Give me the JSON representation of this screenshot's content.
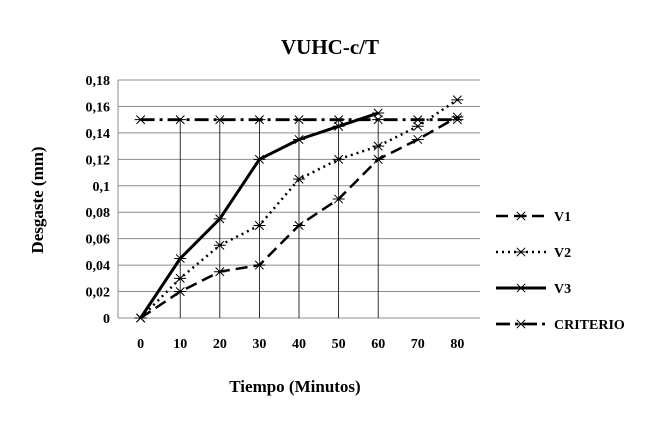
{
  "chart_data": {
    "type": "line",
    "title": "VUHC-c/T",
    "xlabel": "Tiempo (Minutos)",
    "ylabel": "Desgaste (mm)",
    "x": [
      0,
      10,
      20,
      30,
      40,
      50,
      60,
      70,
      80
    ],
    "x_tick_labels": [
      "0",
      "10",
      "20",
      "30",
      "40",
      "50",
      "60",
      "70",
      "80"
    ],
    "ylim": [
      0,
      0.18
    ],
    "y_ticks": [
      0,
      0.02,
      0.04,
      0.06,
      0.08,
      0.1,
      0.12,
      0.14,
      0.16,
      0.18
    ],
    "y_tick_labels": [
      "0",
      "0,02",
      "0,04",
      "0,06",
      "0,08",
      "0,1",
      "0,12",
      "0,14",
      "0,16",
      "0,18"
    ],
    "grid": "horizontal",
    "legend_position": "right",
    "series": [
      {
        "name": "V1",
        "style": "dashed",
        "color": "#000000",
        "points": [
          [
            0,
            0
          ],
          [
            10,
            0.02
          ],
          [
            20,
            0.035
          ],
          [
            30,
            0.04
          ],
          [
            40,
            0.07
          ],
          [
            50,
            0.09
          ],
          [
            60,
            0.12
          ],
          [
            70,
            0.135
          ],
          [
            80,
            0.152
          ]
        ]
      },
      {
        "name": "V2",
        "style": "dotted",
        "color": "#000000",
        "points": [
          [
            0,
            0
          ],
          [
            10,
            0.03
          ],
          [
            20,
            0.055
          ],
          [
            30,
            0.07
          ],
          [
            40,
            0.105
          ],
          [
            50,
            0.12
          ],
          [
            60,
            0.13
          ],
          [
            70,
            0.145
          ],
          [
            80,
            0.165
          ]
        ]
      },
      {
        "name": "V3",
        "style": "solid",
        "color": "#000000",
        "points": [
          [
            0,
            0
          ],
          [
            10,
            0.045
          ],
          [
            20,
            0.075
          ],
          [
            30,
            0.12
          ],
          [
            40,
            0.135
          ],
          [
            50,
            0.145
          ],
          [
            60,
            0.155
          ]
        ]
      },
      {
        "name": "CRITERIO",
        "style": "dashdot",
        "color": "#000000",
        "points": [
          [
            0,
            0.15
          ],
          [
            10,
            0.15
          ],
          [
            20,
            0.15
          ],
          [
            30,
            0.15
          ],
          [
            40,
            0.15
          ],
          [
            50,
            0.15
          ],
          [
            60,
            0.15
          ],
          [
            70,
            0.15
          ],
          [
            80,
            0.15
          ]
        ]
      }
    ]
  }
}
